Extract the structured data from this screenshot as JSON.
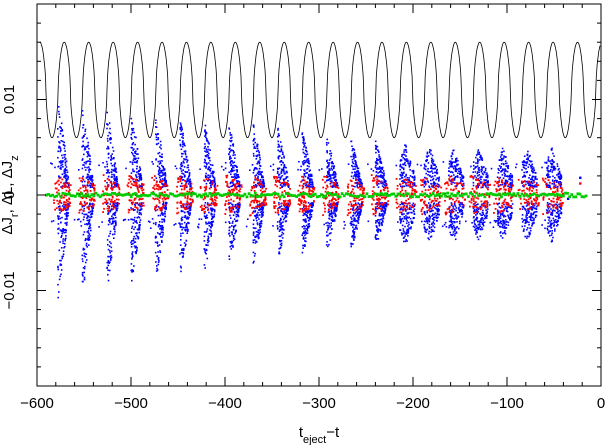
{
  "chart_data": {
    "type": "scatter",
    "title": "",
    "xlabel": {
      "main": "t",
      "sub": "eject",
      "rest": "−t"
    },
    "ylabel": {
      "parts": [
        {
          "main": "ΔJ",
          "sub": "r"
        },
        {
          "main": ", ΔL",
          "sub": ""
        },
        {
          "main": ", ΔJ",
          "sub": "z"
        }
      ]
    },
    "xlim": [
      -600,
      0
    ],
    "ylim": [
      -0.02,
      0.02
    ],
    "x_ticks": [
      -600,
      -500,
      -400,
      -300,
      -200,
      -100,
      0
    ],
    "x_tick_labels": [
      "−600",
      "−500",
      "−400",
      "−300",
      "−200",
      "−100",
      "0"
    ],
    "y_ticks": [
      -0.01,
      0,
      0.01
    ],
    "y_tick_labels": [
      "−0.01",
      "0",
      "0.01"
    ],
    "grid": false,
    "legend": "none",
    "colors": {
      "jr": "#0000ff",
      "l": "#ff0000",
      "jz": "#00cc00",
      "orbit": "#000000"
    },
    "orbit_curve": {
      "description_units": "reference curve in data units",
      "period": 26.0,
      "phase_min_x": -584,
      "min_y": 0.006,
      "max_y": 0.016
    },
    "ejection_clumps": {
      "x_start": [
        -578,
        -552,
        -526,
        -500,
        -474,
        -448,
        -422,
        -396,
        -370,
        -344,
        -318,
        -292,
        -266,
        -240,
        -214,
        -188,
        -162,
        -136,
        -110,
        -84,
        -58
      ],
      "jr_upper_max": [
        0.0105,
        0.0098,
        0.0095,
        0.0092,
        0.0088,
        0.0083,
        0.008,
        0.0078,
        0.0075,
        0.0072,
        0.0068,
        0.0065,
        0.006,
        0.0058,
        0.0055,
        0.0052,
        0.005,
        0.005,
        0.005,
        0.005,
        0.005
      ],
      "jr_lower_min": [
        -0.0112,
        -0.0108,
        -0.0103,
        -0.0098,
        -0.0093,
        -0.0088,
        -0.0083,
        -0.008,
        -0.0075,
        -0.0071,
        -0.0068,
        -0.0064,
        -0.006,
        -0.0057,
        -0.0055,
        -0.0053,
        -0.0052,
        -0.005,
        -0.005,
        -0.005,
        -0.005
      ],
      "l_spread": 0.0022,
      "jz_spread": 0.0002
    },
    "stray_points": [
      {
        "series": "jr",
        "x": -22,
        "y": 0.0018
      },
      {
        "series": "l",
        "x": -22,
        "y": 0.0012
      },
      {
        "series": "jr",
        "x": -35,
        "y": -0.0004
      }
    ]
  }
}
